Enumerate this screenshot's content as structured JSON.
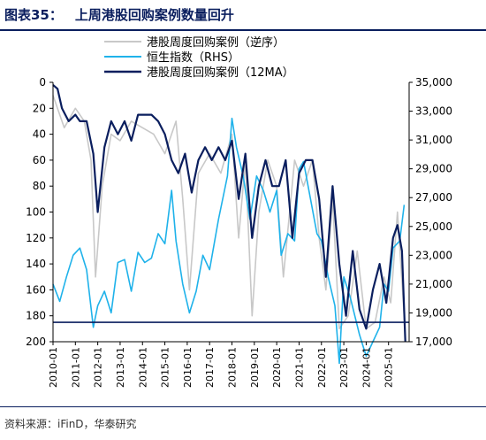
{
  "figure": {
    "number": "图表35：",
    "title": "上周港股回购案例数量回升",
    "source": "资料来源：iFinD，华泰研究"
  },
  "colors": {
    "weekly": "#c8c8c8",
    "hsi": "#1fb2ea",
    "ma": "#0a1e5e",
    "axis": "#000000",
    "title": "#0a1e5e"
  },
  "chart_data": {
    "type": "line",
    "legend": [
      "港股周度回购案例（逆序）",
      "恒生指数（RHS）",
      "港股周度回购案例（12MA）"
    ],
    "legend_position": "top-center",
    "grid": false,
    "x_tick_labels": [
      "2010-01",
      "2011-01",
      "2012-01",
      "2013-01",
      "2014-01",
      "2015-01",
      "2016-01",
      "2017-01",
      "2018-01",
      "2019-01",
      "2020-01",
      "2021-01",
      "2022-01",
      "2023-01",
      "2024-01",
      "2025-01"
    ],
    "left_axis": {
      "ylim": [
        200,
        0
      ],
      "inverted": true,
      "ticks": [
        0,
        20,
        40,
        60,
        80,
        100,
        120,
        140,
        160,
        180,
        200
      ],
      "tick_labels": [
        "0",
        "20",
        "40",
        "60",
        "80",
        "100",
        "120",
        "140",
        "160",
        "180",
        "200"
      ]
    },
    "right_axis": {
      "ylim": [
        17000,
        35000
      ],
      "ticks": [
        17000,
        19000,
        21000,
        23000,
        25000,
        27000,
        29000,
        31000,
        33000,
        35000
      ],
      "tick_labels": [
        "17,000",
        "19,000",
        "21,000",
        "23,000",
        "25,000",
        "27,000",
        "29,000",
        "31,000",
        "33,000",
        "35,000"
      ]
    },
    "reference_line": {
      "axis": "left",
      "y": 185
    },
    "series": [
      {
        "name": "港股周度回购案例（逆序）",
        "axis": "left",
        "x": [
          2010.0,
          2010.5,
          2011.0,
          2011.4,
          2011.7,
          2011.9,
          2012.2,
          2012.6,
          2013.0,
          2013.5,
          2014.0,
          2014.5,
          2015.0,
          2015.5,
          2015.8,
          2016.1,
          2016.5,
          2017.0,
          2017.5,
          2018.0,
          2018.3,
          2018.6,
          2018.9,
          2019.2,
          2019.6,
          2020.0,
          2020.3,
          2020.8,
          2021.2,
          2021.6,
          2021.9,
          2022.2,
          2022.5,
          2022.8,
          2023.2,
          2023.6,
          2024.0,
          2024.4,
          2024.8,
          2025.1,
          2025.4,
          2025.7
        ],
        "values": [
          10,
          35,
          20,
          30,
          60,
          150,
          80,
          40,
          45,
          30,
          35,
          40,
          55,
          30,
          90,
          160,
          70,
          55,
          70,
          40,
          120,
          60,
          180,
          100,
          60,
          80,
          150,
          60,
          80,
          60,
          120,
          160,
          90,
          190,
          180,
          130,
          190,
          185,
          150,
          170,
          100,
          180
        ]
      },
      {
        "name": "恒生指数（RHS）",
        "axis": "right",
        "x": [
          2010.0,
          2010.3,
          2010.6,
          2010.9,
          2011.2,
          2011.5,
          2011.8,
          2012.0,
          2012.3,
          2012.6,
          2012.9,
          2013.2,
          2013.5,
          2013.8,
          2014.1,
          2014.4,
          2014.7,
          2015.0,
          2015.3,
          2015.5,
          2015.8,
          2016.1,
          2016.4,
          2016.7,
          2017.0,
          2017.4,
          2017.8,
          2018.0,
          2018.2,
          2018.5,
          2018.8,
          2019.1,
          2019.4,
          2019.7,
          2020.0,
          2020.2,
          2020.5,
          2020.8,
          2021.0,
          2021.2,
          2021.5,
          2021.8,
          2022.0,
          2022.3,
          2022.6,
          2022.8,
          2023.0,
          2023.3,
          2023.7,
          2024.0,
          2024.3,
          2024.6,
          2024.8,
          2025.0,
          2025.2,
          2025.5,
          2025.7
        ],
        "values": [
          21000,
          19800,
          21500,
          23000,
          23500,
          22000,
          18000,
          19500,
          20500,
          19000,
          22500,
          22700,
          20500,
          23200,
          22500,
          22800,
          24500,
          23800,
          27500,
          24000,
          21000,
          19000,
          20500,
          23000,
          22000,
          25500,
          28500,
          32500,
          30500,
          28500,
          25500,
          28500,
          27500,
          26000,
          27500,
          23000,
          24500,
          24000,
          29000,
          29500,
          27000,
          24500,
          24000,
          21500,
          19500,
          15500,
          21500,
          20000,
          17500,
          16000,
          17000,
          18000,
          21000,
          20500,
          23500,
          24000,
          26500
        ]
      },
      {
        "name": "港股周度回购案例（12MA）",
        "axis": "left",
        "x": [
          2010.0,
          2010.2,
          2010.4,
          2010.7,
          2011.0,
          2011.2,
          2011.5,
          2011.8,
          2012.0,
          2012.3,
          2012.6,
          2012.9,
          2013.2,
          2013.5,
          2013.8,
          2014.1,
          2014.4,
          2014.7,
          2015.0,
          2015.3,
          2015.6,
          2015.9,
          2016.2,
          2016.5,
          2016.8,
          2017.1,
          2017.4,
          2017.7,
          2018.0,
          2018.3,
          2018.6,
          2018.9,
          2019.2,
          2019.5,
          2019.8,
          2020.1,
          2020.4,
          2020.7,
          2021.0,
          2021.3,
          2021.6,
          2021.9,
          2022.2,
          2022.5,
          2022.8,
          2023.1,
          2023.4,
          2023.7,
          2024.0,
          2024.3,
          2024.6,
          2024.9,
          2025.2,
          2025.4,
          2025.6,
          2025.75
        ],
        "values": [
          2,
          5,
          20,
          30,
          25,
          30,
          30,
          55,
          100,
          50,
          30,
          40,
          30,
          45,
          25,
          25,
          25,
          30,
          40,
          60,
          70,
          55,
          85,
          60,
          50,
          60,
          50,
          60,
          45,
          90,
          55,
          120,
          80,
          60,
          80,
          80,
          60,
          120,
          70,
          60,
          60,
          90,
          150,
          80,
          140,
          180,
          130,
          175,
          190,
          160,
          140,
          170,
          120,
          110,
          130,
          200
        ]
      }
    ]
  }
}
